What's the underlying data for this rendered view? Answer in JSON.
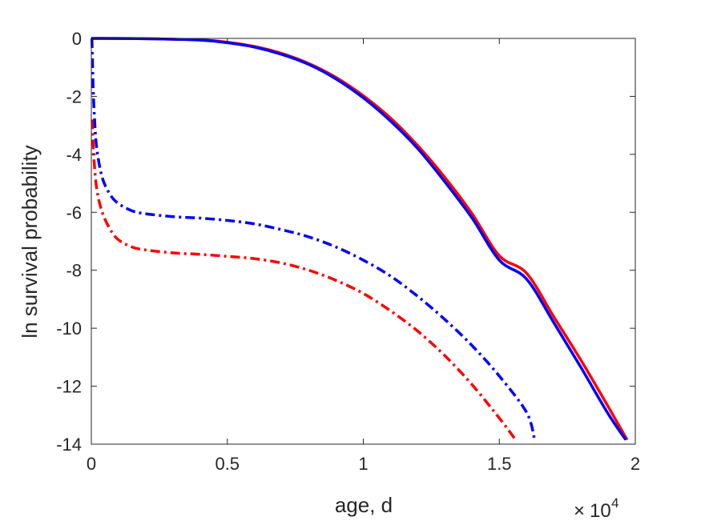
{
  "chart_data": {
    "type": "line",
    "title": "",
    "xlabel": "age, d",
    "ylabel": "ln survival probability",
    "x_exponent": {
      "base": "10",
      "power": "4"
    },
    "xlim": [
      0,
      2
    ],
    "ylim": [
      -14,
      0
    ],
    "xticks": [
      {
        "value": 0,
        "label": "0"
      },
      {
        "value": 0.5,
        "label": "0.5"
      },
      {
        "value": 1,
        "label": "1"
      },
      {
        "value": 1.5,
        "label": "1.5"
      },
      {
        "value": 2,
        "label": "2"
      }
    ],
    "yticks": [
      {
        "value": 0,
        "label": "0"
      },
      {
        "value": -2,
        "label": "-2"
      },
      {
        "value": -4,
        "label": "-4"
      },
      {
        "value": -6,
        "label": "-6"
      },
      {
        "value": -8,
        "label": "-8"
      },
      {
        "value": -10,
        "label": "-10"
      },
      {
        "value": -12,
        "label": "-12"
      },
      {
        "value": -14,
        "label": "-14"
      }
    ],
    "grid": false,
    "legend": "none",
    "series": [
      {
        "color": "#ff0000",
        "style": "solid",
        "x": [
          0,
          0.2,
          0.4,
          0.5,
          0.6,
          0.7,
          0.8,
          0.9,
          1.0,
          1.1,
          1.2,
          1.3,
          1.4,
          1.5,
          1.6,
          1.7,
          1.8,
          1.9,
          1.97
        ],
        "y": [
          0,
          -0.01,
          -0.05,
          -0.13,
          -0.28,
          -0.52,
          -0.87,
          -1.35,
          -1.98,
          -2.75,
          -3.7,
          -4.8,
          -6.05,
          -7.5,
          -8.1,
          -9.6,
          -11.1,
          -12.7,
          -13.85
        ]
      },
      {
        "color": "#0000ff",
        "style": "solid",
        "x": [
          0,
          0.2,
          0.4,
          0.5,
          0.6,
          0.7,
          0.8,
          0.9,
          1.0,
          1.1,
          1.2,
          1.3,
          1.4,
          1.5,
          1.6,
          1.7,
          1.8,
          1.9,
          1.965
        ],
        "y": [
          0,
          -0.01,
          -0.06,
          -0.15,
          -0.3,
          -0.55,
          -0.9,
          -1.4,
          -2.05,
          -2.85,
          -3.8,
          -4.95,
          -6.2,
          -7.65,
          -8.3,
          -9.8,
          -11.35,
          -12.95,
          -13.85
        ]
      },
      {
        "color": "#ff0000",
        "style": "dashdot",
        "x": [
          0.003,
          0.006,
          0.01,
          0.02,
          0.04,
          0.07,
          0.1,
          0.15,
          0.2,
          0.3,
          0.4,
          0.5,
          0.6,
          0.7,
          0.8,
          0.9,
          1.0,
          1.1,
          1.2,
          1.3,
          1.4,
          1.5,
          1.56
        ],
        "y": [
          -2.8,
          -3.5,
          -4.2,
          -5.2,
          -6.0,
          -6.6,
          -6.95,
          -7.2,
          -7.3,
          -7.4,
          -7.45,
          -7.52,
          -7.6,
          -7.75,
          -8.0,
          -8.35,
          -8.8,
          -9.4,
          -10.1,
          -10.95,
          -11.95,
          -13.1,
          -13.85
        ]
      },
      {
        "color": "#0000ff",
        "style": "dashdot",
        "x": [
          0.002,
          0.004,
          0.007,
          0.012,
          0.02,
          0.04,
          0.07,
          0.1,
          0.15,
          0.2,
          0.3,
          0.4,
          0.5,
          0.6,
          0.7,
          0.8,
          0.9,
          1.0,
          1.1,
          1.2,
          1.3,
          1.4,
          1.5,
          1.6,
          1.63
        ],
        "y": [
          0,
          -0.7,
          -1.8,
          -2.8,
          -3.8,
          -4.8,
          -5.4,
          -5.7,
          -5.95,
          -6.05,
          -6.15,
          -6.2,
          -6.28,
          -6.4,
          -6.6,
          -6.85,
          -7.2,
          -7.65,
          -8.2,
          -8.9,
          -9.7,
          -10.6,
          -11.65,
          -12.9,
          -13.85
        ]
      }
    ]
  }
}
